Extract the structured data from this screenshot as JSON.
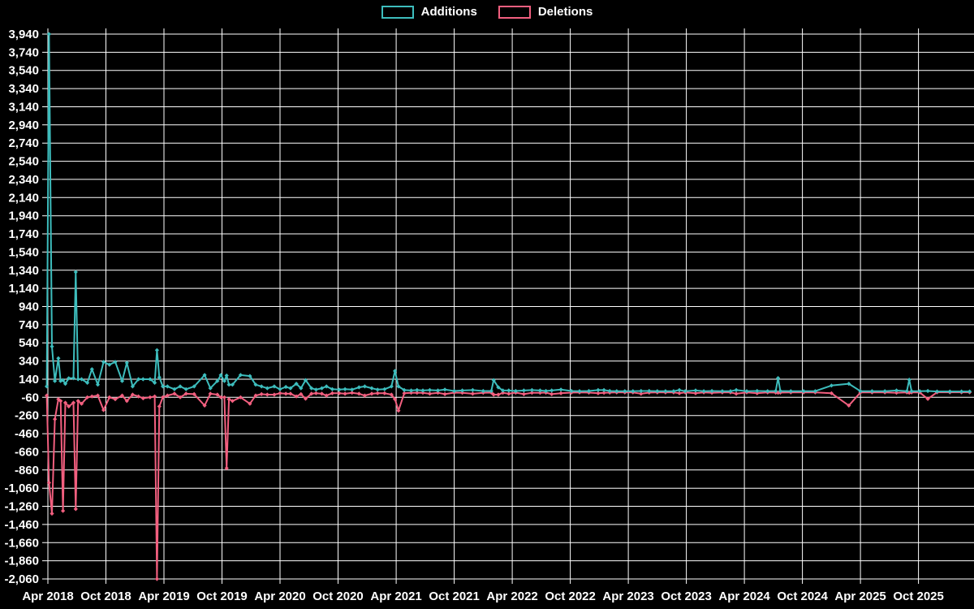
{
  "legend": {
    "items": [
      {
        "label": "Additions",
        "color": "#3dbdbd"
      },
      {
        "label": "Deletions",
        "color": "#f25f7f"
      }
    ]
  },
  "chart_data": {
    "type": "line",
    "title": "",
    "xlabel": "",
    "ylabel": "",
    "background": "#000000",
    "grid": true,
    "grid_color": "#ffffff",
    "text_color": "#ffffff",
    "legend_position": "top-center",
    "marker": "diamond",
    "ylim": [
      -2060,
      3940
    ],
    "xlim": [
      2018.25,
      2026.2
    ],
    "y_tick_values": [
      3940,
      3740,
      3540,
      3340,
      3140,
      2940,
      2740,
      2540,
      2340,
      2140,
      1940,
      1740,
      1540,
      1340,
      1140,
      940,
      740,
      540,
      340,
      140,
      -60,
      -260,
      -460,
      -660,
      -860,
      -1060,
      -1260,
      -1460,
      -1660,
      -1860,
      -2060
    ],
    "y_tick_labels": [
      "3,940",
      "3,740",
      "3,540",
      "3,340",
      "3,140",
      "2,940",
      "2,740",
      "2,540",
      "2,340",
      "2,140",
      "1,940",
      "1,740",
      "1,540",
      "1,340",
      "1,140",
      "940",
      "740",
      "540",
      "340",
      "140",
      "-60",
      "-260",
      "-460",
      "-660",
      "-860",
      "-1,060",
      "-1,260",
      "-1,460",
      "-1,660",
      "-1,860",
      "-2,060"
    ],
    "x_ticks": [
      {
        "label": "Apr 2018",
        "x": 2018.25
      },
      {
        "label": "Oct 2018",
        "x": 2018.75
      },
      {
        "label": "Apr 2019",
        "x": 2019.25
      },
      {
        "label": "Oct 2019",
        "x": 2019.75
      },
      {
        "label": "Apr 2020",
        "x": 2020.25
      },
      {
        "label": "Oct 2020",
        "x": 2020.75
      },
      {
        "label": "Apr 2021",
        "x": 2021.25
      },
      {
        "label": "Oct 2021",
        "x": 2021.75
      },
      {
        "label": "Apr 2022",
        "x": 2022.25
      },
      {
        "label": "Oct 2022",
        "x": 2022.75
      },
      {
        "label": "Apr 2023",
        "x": 2023.25
      },
      {
        "label": "Oct 2023",
        "x": 2023.75
      },
      {
        "label": "Apr 2024",
        "x": 2024.25
      },
      {
        "label": "Oct 2024",
        "x": 2024.75
      },
      {
        "label": "Apr 2025",
        "x": 2025.25
      },
      {
        "label": "Oct 2025",
        "x": 2025.75
      }
    ],
    "x": [
      2018.24,
      2018.26,
      2018.285,
      2018.31,
      2018.34,
      2018.36,
      2018.38,
      2018.4,
      2018.43,
      2018.47,
      2018.49,
      2018.51,
      2018.54,
      2018.59,
      2018.63,
      2018.68,
      2018.73,
      2018.78,
      2018.83,
      2018.89,
      2018.93,
      2018.98,
      2019.03,
      2019.07,
      2019.13,
      2019.17,
      2019.19,
      2019.21,
      2019.24,
      2019.28,
      2019.34,
      2019.39,
      2019.44,
      2019.51,
      2019.6,
      2019.65,
      2019.71,
      2019.74,
      2019.77,
      2019.79,
      2019.81,
      2019.84,
      2019.91,
      2019.99,
      2020.04,
      2020.09,
      2020.14,
      2020.2,
      2020.25,
      2020.3,
      2020.34,
      2020.39,
      2020.43,
      2020.47,
      2020.52,
      2020.56,
      2020.61,
      2020.65,
      2020.7,
      2020.76,
      2020.81,
      2020.87,
      2020.93,
      2020.98,
      2021.04,
      2021.09,
      2021.15,
      2021.21,
      2021.24,
      2021.27,
      2021.32,
      2021.38,
      2021.43,
      2021.48,
      2021.54,
      2021.61,
      2021.67,
      2021.75,
      2021.82,
      2021.91,
      2022.0,
      2022.07,
      2022.09,
      2022.13,
      2022.17,
      2022.22,
      2022.28,
      2022.35,
      2022.42,
      2022.49,
      2022.54,
      2022.59,
      2022.67,
      2022.76,
      2022.83,
      2022.91,
      2022.99,
      2023.04,
      2023.09,
      2023.15,
      2023.22,
      2023.29,
      2023.36,
      2023.43,
      2023.5,
      2023.57,
      2023.64,
      2023.69,
      2023.74,
      2023.83,
      2023.9,
      2023.97,
      2024.06,
      2024.13,
      2024.18,
      2024.27,
      2024.36,
      2024.45,
      2024.52,
      2024.54,
      2024.56,
      2024.65,
      2024.76,
      2024.86,
      2025.0,
      2025.15,
      2025.25,
      2025.35,
      2025.46,
      2025.56,
      2025.65,
      2025.67,
      2025.69,
      2025.76,
      2025.83,
      2025.91,
      2026.02,
      2026.12,
      2026.19
    ],
    "series": [
      {
        "name": "Additions",
        "color": "#3dbdbd",
        "values": [
          60,
          3940,
          500,
          120,
          370,
          120,
          130,
          90,
          150,
          150,
          1320,
          140,
          140,
          100,
          250,
          80,
          330,
          300,
          330,
          120,
          320,
          60,
          140,
          140,
          140,
          100,
          460,
          160,
          60,
          60,
          30,
          60,
          30,
          60,
          185,
          40,
          120,
          185,
          120,
          180,
          80,
          80,
          185,
          175,
          80,
          60,
          40,
          60,
          30,
          55,
          40,
          90,
          40,
          130,
          40,
          25,
          40,
          60,
          30,
          25,
          30,
          25,
          50,
          60,
          40,
          25,
          30,
          60,
          230,
          60,
          20,
          15,
          20,
          15,
          20,
          15,
          25,
          10,
          15,
          20,
          10,
          10,
          130,
          50,
          15,
          15,
          10,
          15,
          20,
          15,
          10,
          15,
          25,
          10,
          8,
          10,
          20,
          20,
          10,
          8,
          8,
          8,
          10,
          10,
          8,
          8,
          8,
          20,
          8,
          15,
          8,
          10,
          8,
          8,
          20,
          8,
          10,
          8,
          10,
          152,
          10,
          8,
          8,
          8,
          70,
          90,
          8,
          8,
          8,
          15,
          8,
          134,
          8,
          8,
          10,
          5,
          5,
          5,
          5
        ]
      },
      {
        "name": "Deletions",
        "color": "#f25f7f",
        "values": [
          -40,
          -1000,
          -1340,
          -300,
          -80,
          -100,
          -1310,
          -120,
          -160,
          -120,
          -1290,
          -100,
          -130,
          -60,
          -50,
          -40,
          -200,
          -60,
          -80,
          -40,
          -100,
          -30,
          -50,
          -70,
          -60,
          -50,
          -2060,
          -160,
          -60,
          -40,
          -20,
          -60,
          -20,
          -25,
          -150,
          -20,
          -30,
          -60,
          -60,
          -840,
          -80,
          -100,
          -60,
          -130,
          -40,
          -25,
          -30,
          -30,
          -15,
          -20,
          -20,
          -50,
          -25,
          -75,
          -20,
          -15,
          -20,
          -40,
          -15,
          -15,
          -20,
          -10,
          -20,
          -40,
          -20,
          -15,
          -15,
          -30,
          -80,
          -206,
          -15,
          -10,
          -10,
          -10,
          -20,
          -10,
          -25,
          -8,
          -10,
          -20,
          -10,
          -8,
          -30,
          -30,
          -10,
          -20,
          -8,
          -25,
          -10,
          -10,
          -8,
          -25,
          -15,
          -8,
          -6,
          -8,
          -15,
          -10,
          -8,
          -6,
          -6,
          -6,
          -20,
          -8,
          -6,
          -6,
          -6,
          -15,
          -6,
          -15,
          -6,
          -10,
          -6,
          -6,
          -20,
          -6,
          -15,
          -6,
          -8,
          -10,
          -8,
          -6,
          -6,
          -6,
          -15,
          -150,
          -6,
          -6,
          -6,
          -10,
          -6,
          -10,
          -6,
          -6,
          -78,
          -4,
          -4,
          -4,
          -4
        ]
      }
    ]
  }
}
